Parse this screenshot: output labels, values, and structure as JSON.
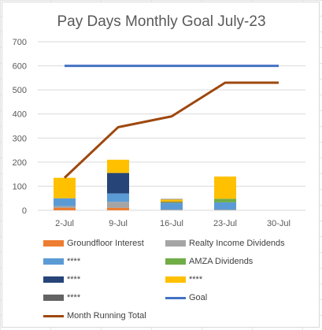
{
  "chart_data": {
    "type": "bar",
    "title": "Pay Days Monthly Goal July-23",
    "xlabel": "",
    "ylabel": "",
    "categories": [
      "2-Jul",
      "9-Jul",
      "16-Jul",
      "23-Jul",
      "30-Jul"
    ],
    "ylim": [
      0,
      700
    ],
    "yticks": [
      0,
      100,
      200,
      300,
      400,
      500,
      600,
      700
    ],
    "grid": true,
    "legend_position": "bottom",
    "stacked_series": [
      {
        "name": "Groundfloor Interest",
        "color": "#ed7d31",
        "values": [
          10,
          10,
          0,
          0,
          0
        ]
      },
      {
        "name": "Realty Income Dividends",
        "color": "#a5a5a5",
        "values": [
          8,
          25,
          3,
          3,
          0
        ]
      },
      {
        "name": "****",
        "color": "#5b9bd5",
        "values": [
          32,
          35,
          27,
          30,
          0
        ]
      },
      {
        "name": "AMZA Dividends",
        "color": "#70ad47",
        "values": [
          0,
          0,
          2,
          15,
          0
        ]
      },
      {
        "name": "****",
        "color": "#264478",
        "values": [
          0,
          85,
          3,
          0,
          0
        ]
      },
      {
        "name": "****",
        "color": "#ffc000",
        "values": [
          85,
          55,
          10,
          92,
          0
        ]
      },
      {
        "name": "****",
        "color": "#636363",
        "values": [
          0,
          0,
          2,
          0,
          0
        ]
      }
    ],
    "line_series": [
      {
        "name": "Goal",
        "color": "#4472c4",
        "values": [
          600,
          600,
          600,
          600,
          600
        ]
      },
      {
        "name": "Month Running Total",
        "color": "#9e480e",
        "values": [
          135,
          345,
          390,
          530,
          530
        ]
      }
    ]
  },
  "legend": [
    {
      "label": "Groundfloor Interest",
      "kind": "box",
      "color": "#ed7d31"
    },
    {
      "label": "Realty Income Dividends",
      "kind": "box",
      "color": "#a5a5a5"
    },
    {
      "label": "****",
      "kind": "box",
      "color": "#5b9bd5"
    },
    {
      "label": "AMZA Dividends",
      "kind": "box",
      "color": "#70ad47"
    },
    {
      "label": "****",
      "kind": "box",
      "color": "#264478"
    },
    {
      "label": "****",
      "kind": "box",
      "color": "#ffc000"
    },
    {
      "label": "****",
      "kind": "box",
      "color": "#636363"
    },
    {
      "label": "Goal",
      "kind": "line",
      "color": "#4472c4"
    },
    {
      "label": "Month Running Total",
      "kind": "line",
      "color": "#9e480e"
    }
  ]
}
